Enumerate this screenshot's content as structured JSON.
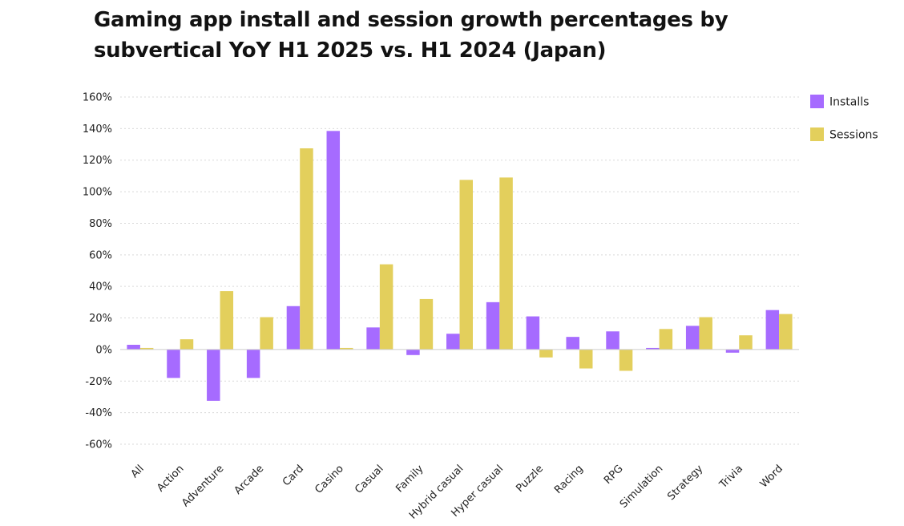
{
  "chart_data": {
    "type": "bar",
    "title": "Gaming app install and session growth percentages by subvertical YoY H1 2025 vs. H1 2024 (Japan)",
    "xlabel": "",
    "ylabel": "",
    "ylim": [
      -60,
      160
    ],
    "yticks": [
      160,
      140,
      120,
      100,
      80,
      60,
      40,
      20,
      0,
      -20,
      -40,
      -60
    ],
    "ytick_labels": [
      "160%",
      "140%",
      "120%",
      "100%",
      "80%",
      "60%",
      "40%",
      "20%",
      "0%",
      "-20%",
      "-40%",
      "-60%"
    ],
    "grid": true,
    "legend_position": "top-right",
    "categories": [
      "All",
      "Action",
      "Adventure",
      "Arcade",
      "Card",
      "Casino",
      "Casual",
      "Family",
      "Hybrid casual",
      "Hyper casual",
      "Puzzle",
      "Racing",
      "RPG",
      "Simulation",
      "Strategy",
      "Trivia",
      "Word"
    ],
    "series": [
      {
        "name": "Installs",
        "color": "#a66bff",
        "values": [
          3,
          -18,
          -32.5,
          -18,
          27.5,
          138.5,
          14,
          -3.5,
          10,
          30,
          21,
          8,
          11.5,
          1,
          15,
          -2,
          25
        ]
      },
      {
        "name": "Sessions",
        "color": "#e3cf5c",
        "values": [
          1,
          6.5,
          37,
          20.5,
          127.5,
          1,
          54,
          32,
          107.5,
          109,
          -5,
          -12,
          -13.5,
          13,
          20.5,
          9,
          22.5
        ]
      }
    ]
  }
}
